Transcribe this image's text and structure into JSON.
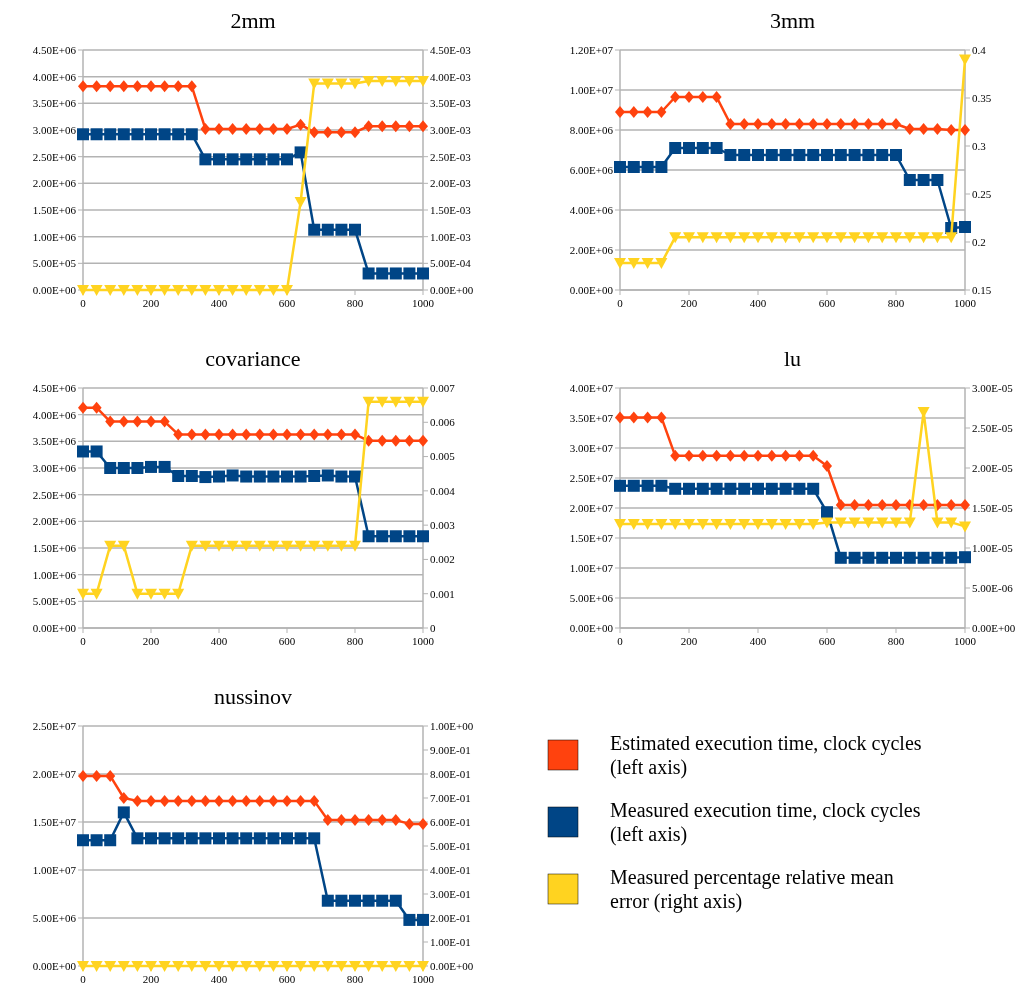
{
  "chart_data": [
    {
      "type": "line",
      "title": "2mm",
      "x": [
        0,
        40,
        80,
        120,
        160,
        200,
        240,
        280,
        320,
        360,
        400,
        440,
        480,
        520,
        560,
        600,
        640,
        680,
        720,
        760,
        800,
        840,
        880,
        920,
        960,
        1000
      ],
      "xlim": [
        0,
        1000
      ],
      "xticks": [
        0,
        200,
        400,
        600,
        800,
        1000
      ],
      "ylim": [
        0,
        4500000
      ],
      "yticks": [
        {
          "value": 0,
          "label": "0.00E+00"
        },
        {
          "value": 500000,
          "label": "5.00E+05"
        },
        {
          "value": 1000000,
          "label": "1.00E+06"
        },
        {
          "value": 1500000,
          "label": "1.50E+06"
        },
        {
          "value": 2000000,
          "label": "2.00E+06"
        },
        {
          "value": 2500000,
          "label": "2.50E+06"
        },
        {
          "value": 3000000,
          "label": "3.00E+06"
        },
        {
          "value": 3500000,
          "label": "3.50E+06"
        },
        {
          "value": 4000000,
          "label": "4.00E+06"
        },
        {
          "value": 4500000,
          "label": "4.50E+06"
        }
      ],
      "y2lim": [
        0,
        0.0045
      ],
      "y2ticks": [
        {
          "value": 0,
          "label": "0.00E+00"
        },
        {
          "value": 0.0005,
          "label": "5.00E-04"
        },
        {
          "value": 0.001,
          "label": "1.00E-03"
        },
        {
          "value": 0.0015,
          "label": "1.50E-03"
        },
        {
          "value": 0.002,
          "label": "2.00E-03"
        },
        {
          "value": 0.0025,
          "label": "2.50E-03"
        },
        {
          "value": 0.003,
          "label": "3.00E-03"
        },
        {
          "value": 0.0035,
          "label": "3.50E-03"
        },
        {
          "value": 0.004,
          "label": "4.00E-03"
        },
        {
          "value": 0.0045,
          "label": "4.50E-03"
        }
      ],
      "grid": "y",
      "legend": false,
      "series": [
        {
          "color": "#ff420e",
          "marker": "diamond",
          "values": [
            3820000,
            3820000,
            3820000,
            3820000,
            3820000,
            3820000,
            3820000,
            3820000,
            3820000,
            3020000,
            3020000,
            3020000,
            3020000,
            3020000,
            3020000,
            3020000,
            3100000,
            2960000,
            2960000,
            2960000,
            2960000,
            3070000,
            3070000,
            3070000,
            3070000,
            3070000
          ]
        },
        {
          "color": "#004586",
          "marker": "square",
          "values": [
            2920000,
            2920000,
            2920000,
            2920000,
            2920000,
            2920000,
            2920000,
            2920000,
            2920000,
            2450000,
            2450000,
            2450000,
            2450000,
            2450000,
            2450000,
            2450000,
            2580000,
            1130000,
            1130000,
            1130000,
            1130000,
            310000,
            310000,
            310000,
            310000,
            310000
          ]
        },
        {
          "color": "#ffd320",
          "marker": "triangle",
          "axis": "y2",
          "values": [
            0,
            0,
            0,
            0,
            0,
            0,
            0,
            0,
            0,
            0,
            0,
            0,
            0,
            0,
            0,
            0,
            0.00165,
            0.00387,
            0.00387,
            0.00387,
            0.00387,
            0.00392,
            0.00392,
            0.00392,
            0.00392,
            0.00392
          ]
        }
      ]
    },
    {
      "type": "line",
      "title": "3mm",
      "x": [
        0,
        40,
        80,
        120,
        160,
        200,
        240,
        280,
        320,
        360,
        400,
        440,
        480,
        520,
        560,
        600,
        640,
        680,
        720,
        760,
        800,
        840,
        880,
        920,
        960,
        1000
      ],
      "xlim": [
        0,
        1000
      ],
      "xticks": [
        0,
        200,
        400,
        600,
        800,
        1000
      ],
      "ylim": [
        0,
        12000000
      ],
      "yticks": [
        {
          "value": 0,
          "label": "0.00E+00"
        },
        {
          "value": 2000000,
          "label": "2.00E+06"
        },
        {
          "value": 4000000,
          "label": "4.00E+06"
        },
        {
          "value": 6000000,
          "label": "6.00E+06"
        },
        {
          "value": 8000000,
          "label": "8.00E+06"
        },
        {
          "value": 10000000,
          "label": "1.00E+07"
        },
        {
          "value": 12000000,
          "label": "1.20E+07"
        }
      ],
      "y2lim": [
        0.15,
        0.4
      ],
      "y2ticks": [
        0.15,
        0.2,
        0.25,
        0.3,
        0.35,
        0.4
      ],
      "grid": "y",
      "legend": false,
      "series": [
        {
          "color": "#ff420e",
          "marker": "diamond",
          "values": [
            8900000,
            8900000,
            8900000,
            8900000,
            9650000,
            9650000,
            9650000,
            9650000,
            8300000,
            8300000,
            8300000,
            8300000,
            8300000,
            8300000,
            8300000,
            8300000,
            8300000,
            8300000,
            8300000,
            8300000,
            8300000,
            8050000,
            8050000,
            8050000,
            8000000,
            8000000
          ]
        },
        {
          "color": "#004586",
          "marker": "square",
          "values": [
            6150000,
            6150000,
            6150000,
            6150000,
            7100000,
            7100000,
            7100000,
            7100000,
            6750000,
            6750000,
            6750000,
            6750000,
            6750000,
            6750000,
            6750000,
            6750000,
            6750000,
            6750000,
            6750000,
            6750000,
            6750000,
            5500000,
            5500000,
            5500000,
            3100000,
            3150000
          ]
        },
        {
          "color": "#ffd320",
          "marker": "triangle",
          "axis": "y2",
          "values": [
            0.178,
            0.178,
            0.178,
            0.178,
            0.205,
            0.205,
            0.205,
            0.205,
            0.205,
            0.205,
            0.205,
            0.205,
            0.205,
            0.205,
            0.205,
            0.205,
            0.205,
            0.205,
            0.205,
            0.205,
            0.205,
            0.205,
            0.205,
            0.205,
            0.205,
            0.39
          ]
        }
      ]
    },
    {
      "type": "line",
      "title": "covariance",
      "x": [
        0,
        40,
        80,
        120,
        160,
        200,
        240,
        280,
        320,
        360,
        400,
        440,
        480,
        520,
        560,
        600,
        640,
        680,
        720,
        760,
        800,
        840,
        880,
        920,
        960,
        1000
      ],
      "xlim": [
        0,
        1000
      ],
      "xticks": [
        0,
        200,
        400,
        600,
        800,
        1000
      ],
      "ylim": [
        0,
        4500000
      ],
      "yticks": [
        {
          "value": 0,
          "label": "0.00E+00"
        },
        {
          "value": 500000,
          "label": "5.00E+05"
        },
        {
          "value": 1000000,
          "label": "1.00E+06"
        },
        {
          "value": 1500000,
          "label": "1.50E+06"
        },
        {
          "value": 2000000,
          "label": "2.00E+06"
        },
        {
          "value": 2500000,
          "label": "2.50E+06"
        },
        {
          "value": 3000000,
          "label": "3.00E+06"
        },
        {
          "value": 3500000,
          "label": "3.50E+06"
        },
        {
          "value": 4000000,
          "label": "4.00E+06"
        },
        {
          "value": 4500000,
          "label": "4.50E+06"
        }
      ],
      "y2lim": [
        0,
        0.007
      ],
      "y2ticks": [
        0,
        0.001,
        0.002,
        0.003,
        0.004,
        0.005,
        0.006,
        0.007
      ],
      "grid": "y",
      "legend": false,
      "series": [
        {
          "color": "#ff420e",
          "marker": "diamond",
          "values": [
            4130000,
            4130000,
            3870000,
            3870000,
            3870000,
            3870000,
            3870000,
            3630000,
            3630000,
            3630000,
            3630000,
            3630000,
            3630000,
            3630000,
            3630000,
            3630000,
            3630000,
            3630000,
            3630000,
            3630000,
            3630000,
            3510000,
            3510000,
            3510000,
            3510000,
            3510000
          ]
        },
        {
          "color": "#004586",
          "marker": "square",
          "values": [
            3310000,
            3310000,
            3000000,
            3000000,
            3000000,
            3020000,
            3020000,
            2850000,
            2850000,
            2830000,
            2840000,
            2860000,
            2840000,
            2840000,
            2840000,
            2840000,
            2840000,
            2850000,
            2860000,
            2840000,
            2840000,
            1720000,
            1720000,
            1720000,
            1720000,
            1720000
          ]
        },
        {
          "color": "#ffd320",
          "marker": "triangle",
          "axis": "y2",
          "values": [
            0.001,
            0.001,
            0.0024,
            0.0024,
            0.001,
            0.001,
            0.001,
            0.001,
            0.0024,
            0.0024,
            0.0024,
            0.0024,
            0.0024,
            0.0024,
            0.0024,
            0.0024,
            0.0024,
            0.0024,
            0.0024,
            0.0024,
            0.0024,
            0.0066,
            0.0066,
            0.0066,
            0.0066,
            0.0066
          ]
        }
      ]
    },
    {
      "type": "line",
      "title": "lu",
      "x": [
        0,
        40,
        80,
        120,
        160,
        200,
        240,
        280,
        320,
        360,
        400,
        440,
        480,
        520,
        560,
        600,
        640,
        680,
        720,
        760,
        800,
        840,
        880,
        920,
        960,
        1000
      ],
      "xlim": [
        0,
        1000
      ],
      "xticks": [
        0,
        200,
        400,
        600,
        800,
        1000
      ],
      "ylim": [
        0,
        40000000
      ],
      "yticks": [
        {
          "value": 0,
          "label": "0.00E+00"
        },
        {
          "value": 5000000,
          "label": "5.00E+06"
        },
        {
          "value": 10000000,
          "label": "1.00E+07"
        },
        {
          "value": 15000000,
          "label": "1.50E+07"
        },
        {
          "value": 20000000,
          "label": "2.00E+07"
        },
        {
          "value": 25000000,
          "label": "2.50E+07"
        },
        {
          "value": 30000000,
          "label": "3.00E+07"
        },
        {
          "value": 35000000,
          "label": "3.50E+07"
        },
        {
          "value": 40000000,
          "label": "4.00E+07"
        }
      ],
      "y2lim": [
        0,
        3e-05
      ],
      "y2ticks": [
        {
          "value": 0,
          "label": "0.00E+00"
        },
        {
          "value": 5e-06,
          "label": "5.00E-06"
        },
        {
          "value": 1e-05,
          "label": "1.00E-05"
        },
        {
          "value": 1.5e-05,
          "label": "1.50E-05"
        },
        {
          "value": 2e-05,
          "label": "2.00E-05"
        },
        {
          "value": 2.5e-05,
          "label": "2.50E-05"
        },
        {
          "value": 3e-05,
          "label": "3.00E-05"
        }
      ],
      "grid": "y",
      "legend": false,
      "series": [
        {
          "color": "#ff420e",
          "marker": "diamond",
          "values": [
            35100000,
            35100000,
            35100000,
            35100000,
            28700000,
            28700000,
            28700000,
            28700000,
            28700000,
            28700000,
            28700000,
            28700000,
            28700000,
            28700000,
            28700000,
            27000000,
            20500000,
            20500000,
            20500000,
            20500000,
            20500000,
            20500000,
            20500000,
            20500000,
            20500000,
            20500000
          ]
        },
        {
          "color": "#004586",
          "marker": "square",
          "values": [
            23700000,
            23700000,
            23700000,
            23700000,
            23200000,
            23200000,
            23200000,
            23200000,
            23200000,
            23200000,
            23200000,
            23200000,
            23200000,
            23200000,
            23200000,
            19300000,
            11700000,
            11700000,
            11700000,
            11700000,
            11700000,
            11700000,
            11700000,
            11700000,
            11700000,
            11800000
          ]
        },
        {
          "color": "#ffd320",
          "marker": "triangle",
          "axis": "y2",
          "values": [
            1.3e-05,
            1.3e-05,
            1.3e-05,
            1.3e-05,
            1.3e-05,
            1.3e-05,
            1.3e-05,
            1.3e-05,
            1.3e-05,
            1.3e-05,
            1.3e-05,
            1.3e-05,
            1.3e-05,
            1.3e-05,
            1.3e-05,
            1.32e-05,
            1.32e-05,
            1.32e-05,
            1.32e-05,
            1.32e-05,
            1.32e-05,
            1.32e-05,
            2.7e-05,
            1.32e-05,
            1.32e-05,
            1.27e-05
          ]
        }
      ]
    },
    {
      "type": "line",
      "title": "nussinov",
      "x": [
        0,
        40,
        80,
        120,
        160,
        200,
        240,
        280,
        320,
        360,
        400,
        440,
        480,
        520,
        560,
        600,
        640,
        680,
        720,
        760,
        800,
        840,
        880,
        920,
        960,
        1000
      ],
      "xlim": [
        0,
        1000
      ],
      "xticks": [
        0,
        200,
        400,
        600,
        800,
        1000
      ],
      "ylim": [
        0,
        25000000
      ],
      "yticks": [
        {
          "value": 0,
          "label": "0.00E+00"
        },
        {
          "value": 5000000,
          "label": "5.00E+06"
        },
        {
          "value": 10000000,
          "label": "1.00E+07"
        },
        {
          "value": 15000000,
          "label": "1.50E+07"
        },
        {
          "value": 20000000,
          "label": "2.00E+07"
        },
        {
          "value": 25000000,
          "label": "2.50E+07"
        }
      ],
      "y2lim": [
        0,
        1
      ],
      "y2ticks": [
        {
          "value": 0,
          "label": "0.00E+00"
        },
        {
          "value": 0.1,
          "label": "1.00E-01"
        },
        {
          "value": 0.2,
          "label": "2.00E-01"
        },
        {
          "value": 0.3,
          "label": "3.00E-01"
        },
        {
          "value": 0.4,
          "label": "4.00E-01"
        },
        {
          "value": 0.5,
          "label": "5.00E-01"
        },
        {
          "value": 0.6,
          "label": "6.00E-01"
        },
        {
          "value": 0.7,
          "label": "7.00E-01"
        },
        {
          "value": 0.8,
          "label": "8.00E-01"
        },
        {
          "value": 0.9,
          "label": "9.00E-01"
        },
        {
          "value": 1,
          "label": "1.00E+00"
        }
      ],
      "grid": "y",
      "legend": "right",
      "series": [
        {
          "name": "Estimated execution time, clock cycles (left axis)",
          "color": "#ff420e",
          "marker": "diamond",
          "values": [
            19800000,
            19800000,
            19800000,
            17500000,
            17200000,
            17200000,
            17200000,
            17200000,
            17200000,
            17200000,
            17200000,
            17200000,
            17200000,
            17200000,
            17200000,
            17200000,
            17200000,
            17200000,
            15200000,
            15200000,
            15200000,
            15200000,
            15200000,
            15200000,
            14800000,
            14800000
          ]
        },
        {
          "name": "Measured execution time, clock cycles (left axis)",
          "color": "#004586",
          "marker": "square",
          "values": [
            13100000,
            13100000,
            13100000,
            16000000,
            13300000,
            13300000,
            13300000,
            13300000,
            13300000,
            13300000,
            13300000,
            13300000,
            13300000,
            13300000,
            13300000,
            13300000,
            13300000,
            13300000,
            6800000,
            6800000,
            6800000,
            6800000,
            6800000,
            6800000,
            4800000,
            4800000
          ]
        },
        {
          "name": "Measured percentage relative mean error (right axis)",
          "color": "#ffd320",
          "marker": "triangle",
          "axis": "y2",
          "values": [
            0,
            0,
            0,
            0,
            0,
            0,
            0,
            0,
            0,
            0,
            0,
            0,
            0,
            0,
            0,
            0,
            0,
            0,
            0,
            0,
            0,
            0,
            0,
            0,
            0,
            0
          ]
        }
      ]
    }
  ]
}
